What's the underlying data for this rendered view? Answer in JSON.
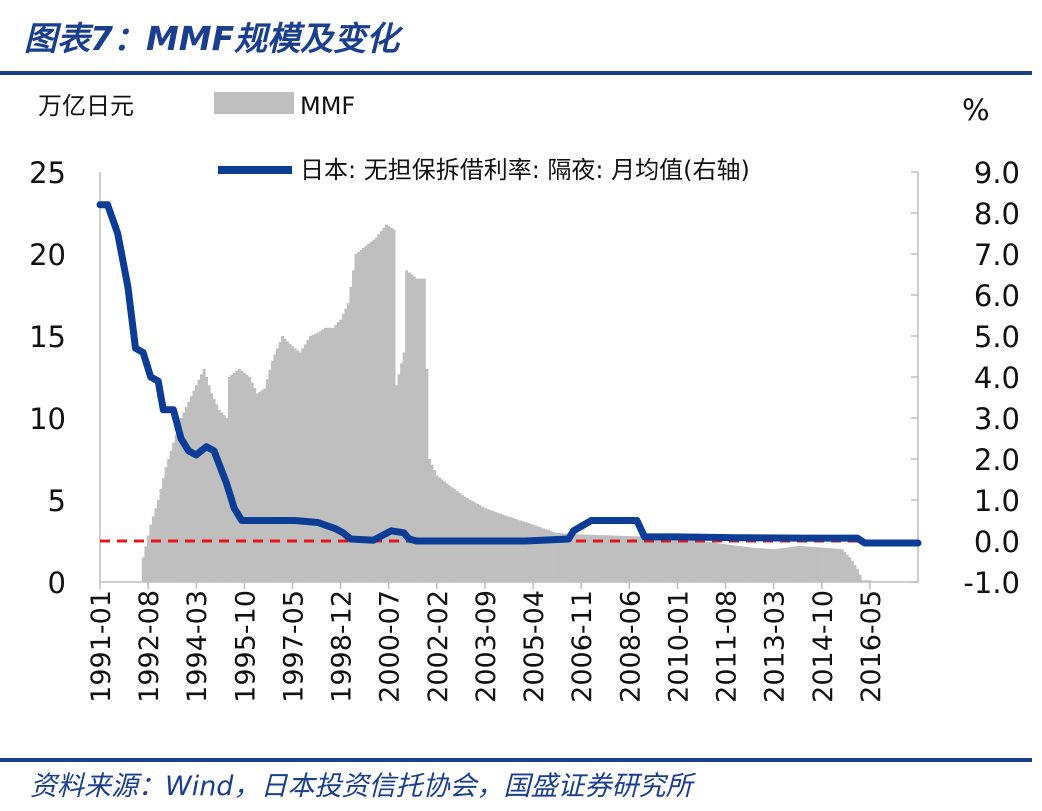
{
  "header": {
    "title": "图表7：MMF规模及变化",
    "source": "资料来源：Wind，日本投资信托协会，国盛证券研究所"
  },
  "chart_data": {
    "type": "bar+line",
    "left_unit": "万亿日元",
    "right_unit": "%",
    "left_ylim": [
      0,
      25
    ],
    "right_ylim": [
      -1.0,
      9.0
    ],
    "left_ticks": [
      "0",
      "5",
      "10",
      "15",
      "20",
      "25"
    ],
    "right_ticks": [
      "-1.0",
      "0.0",
      "1.0",
      "2.0",
      "3.0",
      "4.0",
      "5.0",
      "6.0",
      "7.0",
      "8.0",
      "9.0"
    ],
    "x_tick_labels": [
      "1991-01",
      "1992-08",
      "1994-03",
      "1995-10",
      "1997-05",
      "1998-12",
      "2000-07",
      "2002-02",
      "2003-09",
      "2005-04",
      "2006-11",
      "2008-06",
      "2010-01",
      "2011-08",
      "2013-03",
      "2014-10",
      "2016-05"
    ],
    "legend": [
      {
        "name": "MMF",
        "color": "#bfbfbf",
        "type": "bar"
      },
      {
        "name": "日本: 无担保拆借利率: 隔夜: 月均值(右轴)",
        "color": "#0b3c96",
        "type": "line"
      }
    ],
    "reference_line": {
      "axis": "right",
      "value": 0.0,
      "color": "#e8141c",
      "style": "dashed"
    },
    "series": [
      {
        "name": "MMF",
        "axis": "left",
        "points": [
          [
            "1992-05",
            0.0
          ],
          [
            "1992-06",
            1.5
          ],
          [
            "1992-09",
            3.5
          ],
          [
            "1992-12",
            5.0
          ],
          [
            "1993-03",
            7.0
          ],
          [
            "1993-06",
            8.5
          ],
          [
            "1993-09",
            10.0
          ],
          [
            "1993-12",
            11.0
          ],
          [
            "1994-03",
            12.0
          ],
          [
            "1994-06",
            13.0
          ],
          [
            "1994-09",
            11.5
          ],
          [
            "1994-12",
            10.5
          ],
          [
            "1995-03",
            10.0
          ],
          [
            "1995-04",
            12.5
          ],
          [
            "1995-08",
            13.0
          ],
          [
            "1995-12",
            12.5
          ],
          [
            "1996-03",
            11.5
          ],
          [
            "1996-06",
            11.8
          ],
          [
            "1996-09",
            13.5
          ],
          [
            "1997-01",
            15.0
          ],
          [
            "1997-04",
            14.5
          ],
          [
            "1997-08",
            14.0
          ],
          [
            "1997-12",
            15.0
          ],
          [
            "1998-03",
            15.2
          ],
          [
            "1998-06",
            15.5
          ],
          [
            "1998-09",
            15.5
          ],
          [
            "1998-12",
            16.0
          ],
          [
            "1999-03",
            17.0
          ],
          [
            "1999-06",
            20.0
          ],
          [
            "1999-10",
            20.5
          ],
          [
            "2000-02",
            21.0
          ],
          [
            "2000-06",
            21.8
          ],
          [
            "2000-09",
            21.5
          ],
          [
            "2000-10",
            12.0
          ],
          [
            "2001-01",
            14.0
          ],
          [
            "2001-02",
            19.0
          ],
          [
            "2001-06",
            18.5
          ],
          [
            "2001-09",
            18.5
          ],
          [
            "2001-11",
            7.5
          ],
          [
            "2002-02",
            6.5
          ],
          [
            "2002-06",
            6.0
          ],
          [
            "2003-01",
            5.2
          ],
          [
            "2003-09",
            4.5
          ],
          [
            "2004-06",
            4.0
          ],
          [
            "2005-04",
            3.5
          ],
          [
            "2006-01",
            3.0
          ],
          [
            "2006-11",
            2.9
          ],
          [
            "2008-06",
            2.8
          ],
          [
            "2010-01",
            2.7
          ],
          [
            "2011-08",
            2.3
          ],
          [
            "2012-06",
            2.1
          ],
          [
            "2013-03",
            2.0
          ],
          [
            "2014-01",
            2.2
          ],
          [
            "2014-10",
            2.1
          ],
          [
            "2015-06",
            2.0
          ],
          [
            "2015-09",
            1.5
          ],
          [
            "2015-12",
            0.8
          ],
          [
            "2016-02",
            0.1
          ],
          [
            "2016-05",
            0.1
          ]
        ]
      },
      {
        "name": "日本: 无担保拆借利率: 隔夜: 月均值(右轴)",
        "axis": "right",
        "points": [
          [
            "1991-01",
            8.2
          ],
          [
            "1991-04",
            8.2
          ],
          [
            "1991-08",
            7.5
          ],
          [
            "1991-12",
            6.2
          ],
          [
            "1992-03",
            4.7
          ],
          [
            "1992-06",
            4.6
          ],
          [
            "1992-09",
            4.0
          ],
          [
            "1992-12",
            3.9
          ],
          [
            "1993-02",
            3.2
          ],
          [
            "1993-06",
            3.2
          ],
          [
            "1993-09",
            2.5
          ],
          [
            "1993-12",
            2.2
          ],
          [
            "1994-03",
            2.1
          ],
          [
            "1994-07",
            2.3
          ],
          [
            "1994-10",
            2.2
          ],
          [
            "1995-03",
            1.4
          ],
          [
            "1995-06",
            0.8
          ],
          [
            "1995-09",
            0.5
          ],
          [
            "1996-01",
            0.5
          ],
          [
            "1996-09",
            0.5
          ],
          [
            "1997-06",
            0.5
          ],
          [
            "1998-03",
            0.45
          ],
          [
            "1998-10",
            0.3
          ],
          [
            "1999-01",
            0.2
          ],
          [
            "1999-04",
            0.05
          ],
          [
            "2000-01",
            0.02
          ],
          [
            "2000-08",
            0.25
          ],
          [
            "2001-01",
            0.2
          ],
          [
            "2001-03",
            0.05
          ],
          [
            "2001-06",
            0.0
          ],
          [
            "2003-01",
            0.0
          ],
          [
            "2005-01",
            0.0
          ],
          [
            "2006-06",
            0.05
          ],
          [
            "2006-08",
            0.25
          ],
          [
            "2007-03",
            0.5
          ],
          [
            "2008-03",
            0.5
          ],
          [
            "2008-09",
            0.5
          ],
          [
            "2008-12",
            0.1
          ],
          [
            "2010-01",
            0.1
          ],
          [
            "2012-01",
            0.08
          ],
          [
            "2014-01",
            0.07
          ],
          [
            "2015-12",
            0.07
          ],
          [
            "2016-03",
            -0.05
          ],
          [
            "2017-12",
            -0.05
          ]
        ]
      }
    ]
  }
}
